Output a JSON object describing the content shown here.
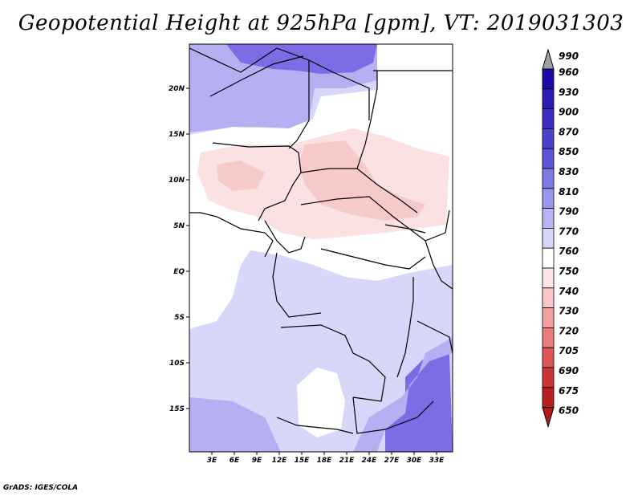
{
  "title": "Geopotential Height at 925hPa [gpm], VT: 2019031303",
  "footer": "GrADS: IGES/COLA",
  "latitude_labels": [
    "20N",
    "15N",
    "10N",
    "5N",
    "EQ",
    "5S",
    "10S",
    "15S"
  ],
  "longitude_labels": [
    "3E",
    "6E",
    "9E",
    "12E",
    "15E",
    "18E",
    "21E",
    "24E",
    "27E",
    "30E",
    "33E"
  ],
  "legend": {
    "levels": [
      "990",
      "960",
      "930",
      "900",
      "870",
      "850",
      "830",
      "810",
      "790",
      "770",
      "760",
      "750",
      "740",
      "730",
      "720",
      "705",
      "690",
      "675",
      "650"
    ],
    "colors": [
      "#a0a0a0",
      "#1c0aa6",
      "#2a1bb6",
      "#3b2dc4",
      "#4c40d0",
      "#5c54dc",
      "#7e79e6",
      "#9a97ee",
      "#b8b6f4",
      "#d6d6fa",
      "#ffffff",
      "#fde4e4",
      "#fbc6c6",
      "#f3a1a1",
      "#ea7b7b",
      "#de5555",
      "#cd3535",
      "#b81e1e",
      "#b01a1a"
    ]
  },
  "colors": {
    "deep_blue": "#7c6ce6",
    "mid_blue": "#b4b0f2",
    "light_blue": "#d7d7fa",
    "white": "#ffffff",
    "light_pink": "#fbe1e1",
    "pink": "#f7caca"
  }
}
